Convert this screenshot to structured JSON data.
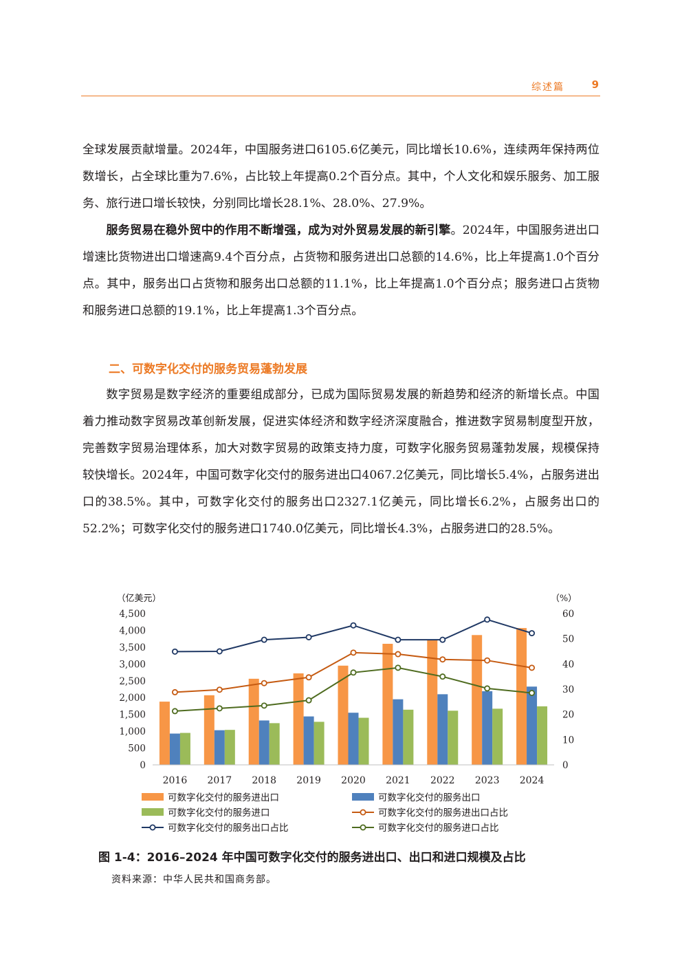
{
  "header": {
    "section": "综述篇",
    "page": "9"
  },
  "para1": "全球发展贡献增量。2024年，中国服务进口6105.6亿美元，同比增长10.6%，连续两年保持两位数增长，占全球比重为7.6%，占比较上年提高0.2个百分点。其中，个人文化和娱乐服务、加工服务、旅行进口增长较快，分别同比增长28.1%、28.0%、27.9%。",
  "para2_bold": "服务贸易在稳外贸中的作用不断增强，成为对外贸易发展的新引擎",
  "para2_rest": "。2024年，中国服务进出口增速比货物进出口增速高9.4个百分点，占货物和服务进出口总额的14.6%，比上年提高1.0个百分点。其中，服务出口占货物和服务出口总额的11.1%，比上年提高1.0个百分点；服务进口占货物和服务进口总额的19.1%，比上年提高1.3个百分点。",
  "heading": "二、可数字化交付的服务贸易蓬勃发展",
  "para3": "数字贸易是数字经济的重要组成部分，已成为国际贸易发展的新趋势和经济的新增长点。中国着力推动数字贸易改革创新发展，促进实体经济和数字经济深度融合，推进数字贸易制度型开放，完善数字贸易治理体系，加大对数字贸易的政策支持力度，可数字化服务贸易蓬勃发展，规模保持较快增长。2024年，中国可数字化交付的服务进出口4067.2亿美元，同比增长5.4%，占服务进出口的38.5%。其中，可数字化交付的服务出口2327.1亿美元，同比增长6.2%，占服务出口的52.2%；可数字化交付的服务进口1740.0亿美元，同比增长4.3%，占服务进口的28.5%。",
  "chart_data": {
    "type": "bar",
    "categories": [
      "2016",
      "2017",
      "2018",
      "2019",
      "2020",
      "2021",
      "2022",
      "2023",
      "2024"
    ],
    "ylabel_left": "（亿美元）",
    "ylabel_right": "（%）",
    "ylim_left": [
      0,
      4500
    ],
    "ylim_right": [
      0,
      60
    ],
    "yticks_left": [
      "0",
      "500",
      "1,000",
      "1,500",
      "2,000",
      "2,500",
      "3,000",
      "3,500",
      "4,000",
      "4,500"
    ],
    "yticks_right": [
      "0",
      "10",
      "20",
      "30",
      "40",
      "50",
      "60"
    ],
    "bar_series": [
      {
        "name": "可数字化交付的服务进出口",
        "color": "#f79646",
        "values": [
          1880,
          2070,
          2560,
          2720,
          2950,
          3600,
          3710,
          3860,
          4067.2
        ]
      },
      {
        "name": "可数字化交付的服务出口",
        "color": "#4f81bd",
        "values": [
          930,
          1030,
          1320,
          1440,
          1550,
          1950,
          2100,
          2190,
          2327.1
        ]
      },
      {
        "name": "可数字化交付的服务进口",
        "color": "#9bbb59",
        "values": [
          950,
          1040,
          1240,
          1280,
          1400,
          1640,
          1610,
          1670,
          1740.0
        ]
      }
    ],
    "line_series": [
      {
        "name": "可数字化交付的服务进出口占比",
        "color": "#c55a11",
        "values": [
          28.8,
          29.8,
          32.4,
          34.7,
          44.5,
          43.9,
          41.8,
          41.4,
          38.5
        ]
      },
      {
        "name": "可数字化交付的服务出口占比",
        "color": "#1f3864",
        "values": [
          44.9,
          45.0,
          49.6,
          50.6,
          55.3,
          49.6,
          49.6,
          57.6,
          52.2
        ]
      },
      {
        "name": "可数字化交付的服务进口占比",
        "color": "#4e6b1f",
        "values": [
          21.3,
          22.4,
          23.5,
          25.6,
          36.6,
          38.5,
          35.0,
          30.3,
          28.5
        ]
      }
    ],
    "legend_position": "bottom",
    "grid": false
  },
  "caption": "图 1-4：2016–2024 年中国可数字化交付的服务进出口、出口和进口规模及占比",
  "source": "资料来源：中华人民共和国商务部。"
}
